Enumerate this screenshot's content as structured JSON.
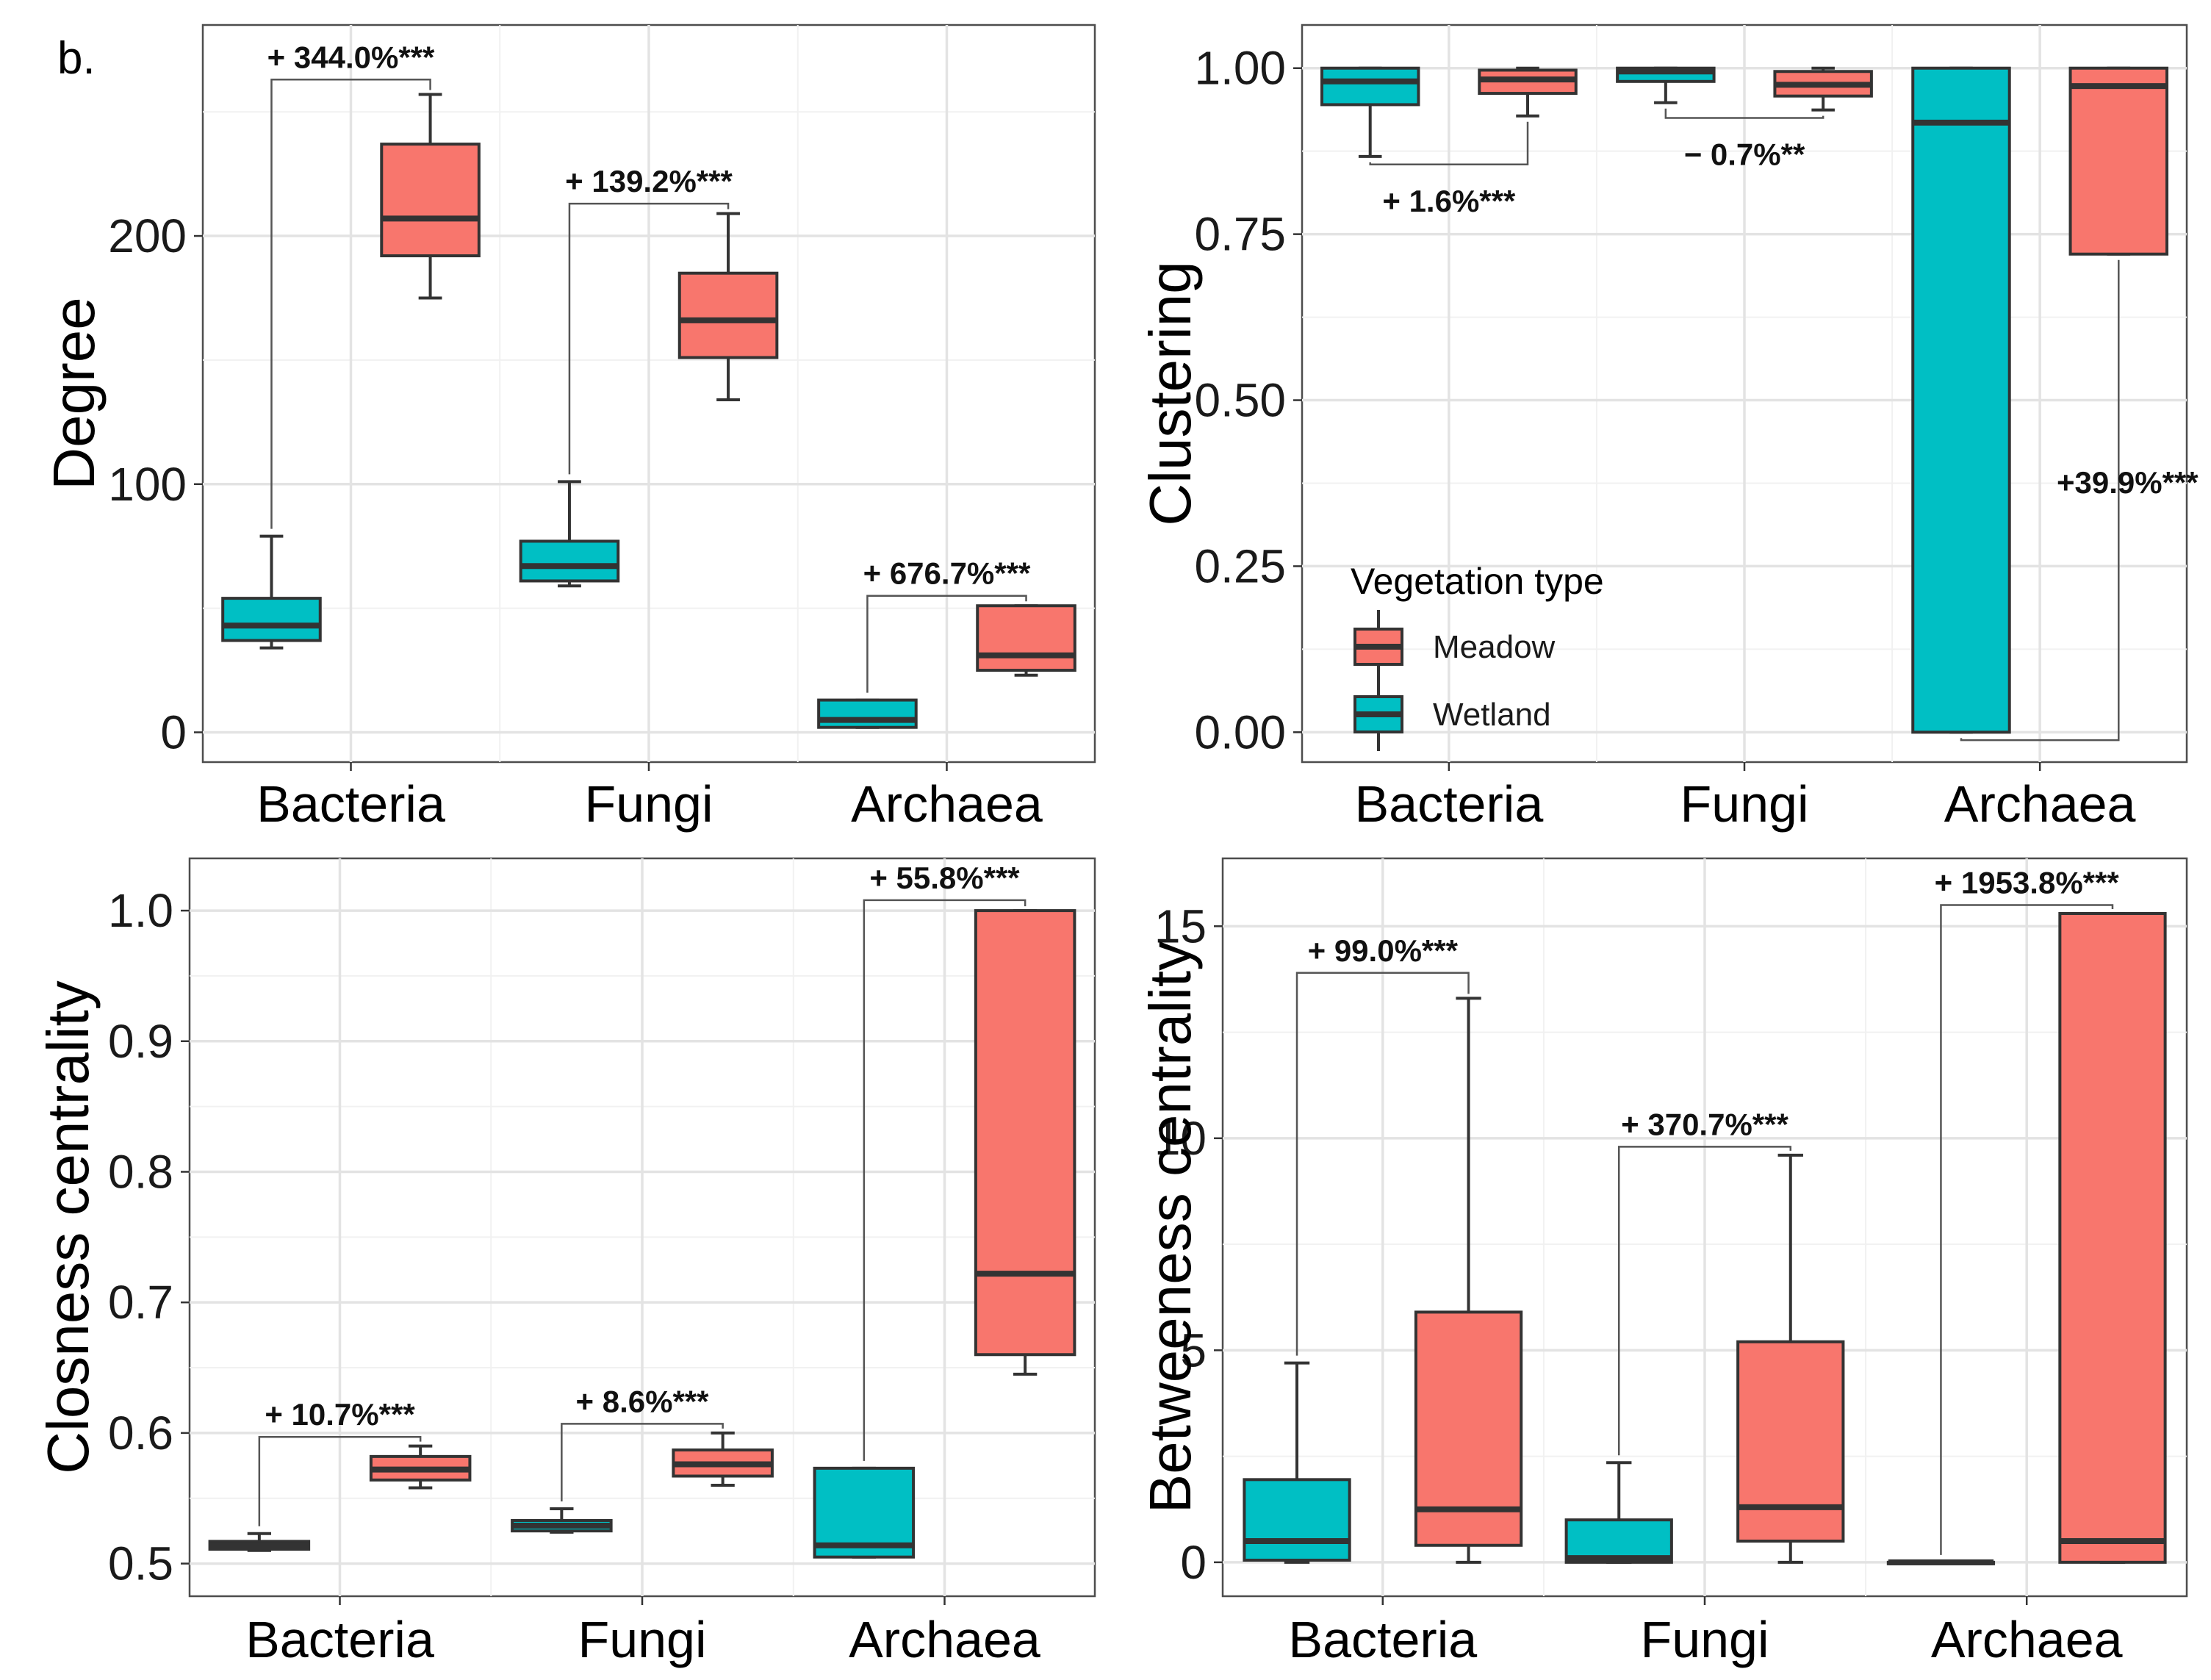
{
  "panel_letter": "b.",
  "colors": {
    "Meadow": "#f8766d",
    "Wetland": "#00bfc4"
  },
  "legend": {
    "title": "Vegetation type",
    "items": [
      {
        "label": "Meadow",
        "key": "Meadow"
      },
      {
        "label": "Wetland",
        "key": "Wetland"
      }
    ]
  },
  "chart_data": [
    {
      "id": "degree",
      "type": "boxplot",
      "ylabel": "Degree",
      "ylim": [
        -12,
        285
      ],
      "yticks": [
        0,
        100,
        200
      ],
      "ytick_labels": [
        "0",
        "100",
        "200"
      ],
      "categories": [
        "Bacteria",
        "Fungi",
        "Archaea"
      ],
      "series": [
        {
          "name": "Wetland",
          "boxes": [
            {
              "category": "Bacteria",
              "min": 34,
              "q1": 37,
              "median": 43,
              "q3": 54,
              "max": 79
            },
            {
              "category": "Fungi",
              "min": 59,
              "q1": 61,
              "median": 67,
              "q3": 77,
              "max": 101
            },
            {
              "category": "Archaea",
              "min": 2,
              "q1": 2,
              "median": 5,
              "q3": 13,
              "max": 13
            }
          ]
        },
        {
          "name": "Meadow",
          "boxes": [
            {
              "category": "Bacteria",
              "min": 175,
              "q1": 192,
              "median": 207,
              "q3": 237,
              "max": 257
            },
            {
              "category": "Fungi",
              "min": 134,
              "q1": 151,
              "median": 166,
              "q3": 185,
              "max": 209
            },
            {
              "category": "Archaea",
              "min": 23,
              "q1": 25,
              "median": 31,
              "q3": 51,
              "max": 51
            }
          ]
        }
      ],
      "annotations": [
        {
          "category": "Bacteria",
          "label": "+ 344.0%***",
          "y": 263
        },
        {
          "category": "Fungi",
          "label": "+ 139.2%***",
          "y": 213
        },
        {
          "category": "Archaea",
          "label": "+ 676.7%***",
          "y": 55
        }
      ]
    },
    {
      "id": "clustering",
      "type": "boxplot",
      "ylabel": "Clustering",
      "ylim": [
        -0.045,
        1.065
      ],
      "yticks": [
        0,
        0.25,
        0.5,
        0.75,
        1.0
      ],
      "ytick_labels": [
        "0.00",
        "0.25",
        "0.50",
        "0.75",
        "1.00"
      ],
      "categories": [
        "Bacteria",
        "Fungi",
        "Archaea"
      ],
      "series": [
        {
          "name": "Wetland",
          "boxes": [
            {
              "category": "Bacteria",
              "min": 0.867,
              "q1": 0.945,
              "median": 0.98,
              "q3": 1.0,
              "max": 1.0
            },
            {
              "category": "Fungi",
              "min": 0.948,
              "q1": 0.98,
              "median": 0.995,
              "q3": 1.0,
              "max": 1.0
            },
            {
              "category": "Archaea",
              "min": 0.0,
              "q1": 0.0,
              "median": 0.918,
              "q3": 1.0,
              "max": 1.0
            }
          ]
        },
        {
          "name": "Meadow",
          "boxes": [
            {
              "category": "Bacteria",
              "min": 0.928,
              "q1": 0.962,
              "median": 0.983,
              "q3": 0.997,
              "max": 1.0
            },
            {
              "category": "Fungi",
              "min": 0.937,
              "q1": 0.958,
              "median": 0.975,
              "q3": 0.995,
              "max": 1.0
            },
            {
              "category": "Archaea",
              "min": 0.72,
              "q1": 0.72,
              "median": 0.973,
              "q3": 1.0,
              "max": 1.0
            }
          ]
        }
      ],
      "annotations": [
        {
          "category": "Bacteria",
          "label": "+ 1.6%***",
          "y": 0.855,
          "below": true
        },
        {
          "category": "Fungi",
          "label": "− 0.7%**",
          "y": 0.925,
          "below": true
        },
        {
          "category": "Archaea",
          "label": "+39.9%***",
          "y": -0.012,
          "below": true,
          "side_label": true
        }
      ]
    },
    {
      "id": "closeness",
      "type": "boxplot",
      "ylabel": "Closness centrality",
      "ylim": [
        0.475,
        1.04
      ],
      "yticks": [
        0.5,
        0.6,
        0.7,
        0.8,
        0.9,
        1.0
      ],
      "ytick_labels": [
        "0.5",
        "0.6",
        "0.7",
        "0.8",
        "0.9",
        "1.0"
      ],
      "categories": [
        "Bacteria",
        "Fungi",
        "Archaea"
      ],
      "series": [
        {
          "name": "Wetland",
          "boxes": [
            {
              "category": "Bacteria",
              "min": 0.51,
              "q1": 0.511,
              "median": 0.514,
              "q3": 0.517,
              "max": 0.523
            },
            {
              "category": "Fungi",
              "min": 0.524,
              "q1": 0.525,
              "median": 0.529,
              "q3": 0.533,
              "max": 0.542
            },
            {
              "category": "Archaea",
              "min": 0.505,
              "q1": 0.505,
              "median": 0.514,
              "q3": 0.573,
              "max": 0.573
            }
          ]
        },
        {
          "name": "Meadow",
          "boxes": [
            {
              "category": "Bacteria",
              "min": 0.558,
              "q1": 0.564,
              "median": 0.572,
              "q3": 0.582,
              "max": 0.59
            },
            {
              "category": "Fungi",
              "min": 0.56,
              "q1": 0.567,
              "median": 0.576,
              "q3": 0.587,
              "max": 0.6
            },
            {
              "category": "Archaea",
              "min": 0.645,
              "q1": 0.66,
              "median": 0.722,
              "q3": 1.0,
              "max": 1.0
            }
          ]
        }
      ],
      "annotations": [
        {
          "category": "Bacteria",
          "label": "+ 10.7%***",
          "y": 0.597
        },
        {
          "category": "Fungi",
          "label": "+ 8.6%***",
          "y": 0.607
        },
        {
          "category": "Archaea",
          "label": "+ 55.8%***",
          "y": 1.008
        }
      ]
    },
    {
      "id": "betweenness",
      "type": "boxplot",
      "ylabel": "Betweeness centrality",
      "ylim": [
        -0.8,
        16.6
      ],
      "yticks": [
        0,
        5,
        10,
        15
      ],
      "ytick_labels": [
        "0",
        "5",
        "10",
        "15"
      ],
      "categories": [
        "Bacteria",
        "Fungi",
        "Archaea"
      ],
      "series": [
        {
          "name": "Wetland",
          "boxes": [
            {
              "category": "Bacteria",
              "min": 0.0,
              "q1": 0.05,
              "median": 0.5,
              "q3": 1.95,
              "max": 4.7
            },
            {
              "category": "Fungi",
              "min": 0.0,
              "q1": 0.0,
              "median": 0.1,
              "q3": 1.0,
              "max": 2.35
            },
            {
              "category": "Archaea",
              "min": 0.0,
              "q1": 0.0,
              "median": 0.0,
              "q3": 0.0,
              "max": 0.0
            }
          ]
        },
        {
          "name": "Meadow",
          "boxes": [
            {
              "category": "Bacteria",
              "min": 0.0,
              "q1": 0.4,
              "median": 1.25,
              "q3": 5.9,
              "max": 13.3
            },
            {
              "category": "Fungi",
              "min": 0.0,
              "q1": 0.5,
              "median": 1.3,
              "q3": 5.2,
              "max": 9.6
            },
            {
              "category": "Archaea",
              "min": 0.0,
              "q1": 0.0,
              "median": 0.5,
              "q3": 15.3,
              "max": 15.3
            }
          ]
        }
      ],
      "annotations": [
        {
          "category": "Bacteria",
          "label": "+ 99.0%***",
          "y": 13.9
        },
        {
          "category": "Fungi",
          "label": "+ 370.7%***",
          "y": 9.8
        },
        {
          "category": "Archaea",
          "label": "+ 1953.8%***",
          "y": 15.5
        }
      ]
    }
  ]
}
